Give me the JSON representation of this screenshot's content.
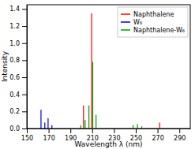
{
  "chart_data": {
    "type": "stem",
    "xlabel": "Wavelength λ (nm)",
    "ylabel": "Intensity",
    "xlim": [
      150,
      300
    ],
    "ylim": [
      0,
      1.45
    ],
    "xticks": [
      150,
      170,
      190,
      210,
      230,
      250,
      270,
      290
    ],
    "yticks": [
      {
        "value": 0,
        "label": "0.0"
      },
      0.2,
      0.4,
      0.6,
      0.8,
      {
        "value": 1.0,
        "label": "1.0"
      },
      1.2,
      1.4
    ],
    "grid": false,
    "legend": "upper right",
    "series": [
      {
        "name": "Naphthalene",
        "color": "#ff0000",
        "x": [
          202.0,
          209.5,
          272.0
        ],
        "values": [
          0.27,
          1.35,
          0.07
        ]
      },
      {
        "name": "W₆",
        "color": "#0000cc",
        "x": [
          163.0,
          166.5,
          169.5,
          173.0
        ],
        "values": [
          0.22,
          0.07,
          0.12,
          0.04
        ]
      },
      {
        "name": "Naphthalene-W₆",
        "color": "#009900",
        "x": [
          199.5,
          203.5,
          207.0,
          210.5,
          213.5,
          247.5,
          251.5,
          255.5
        ],
        "values": [
          0.04,
          0.1,
          0.27,
          0.78,
          0.16,
          0.04,
          0.05,
          0.025
        ]
      }
    ]
  }
}
